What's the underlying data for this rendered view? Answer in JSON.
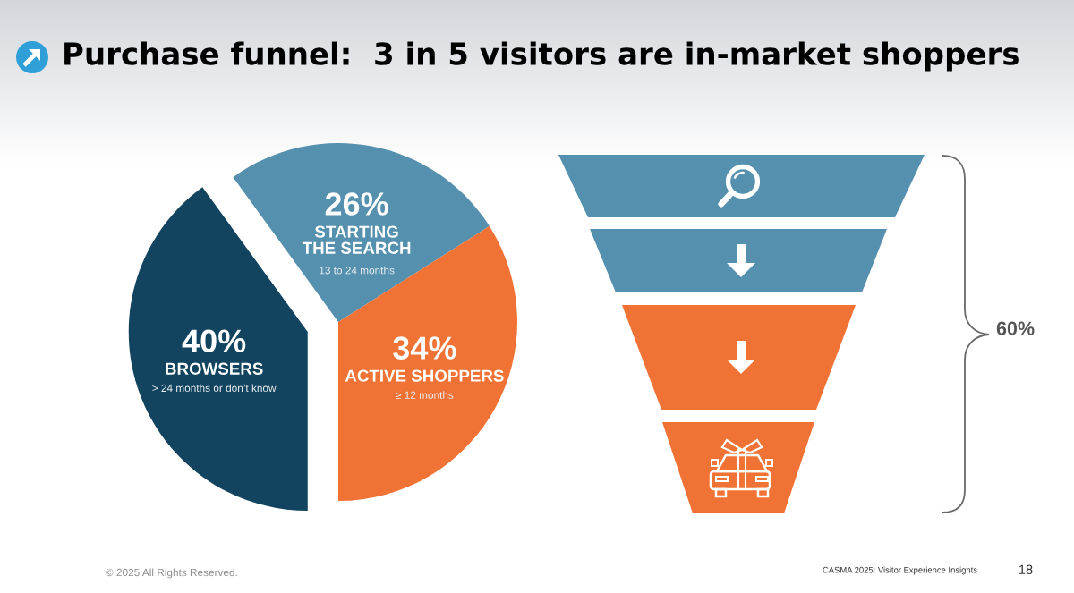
{
  "chart_data": {
    "type": "pie",
    "title": "Purchase funnel:  3 in 5 visitors are in-market shoppers",
    "categories": [
      "BROWSERS",
      "STARTING\nTHE SEARCH",
      "ACTIVE SHOPPERS"
    ],
    "values": [
      40,
      26,
      34
    ],
    "value_labels": [
      "40%",
      "26%",
      "34%"
    ],
    "colors": [
      "#12445f",
      "#5590ae",
      "#f07335"
    ],
    "annotations": [
      "> 24 months or don’t know",
      "13 to 24 months",
      "≥ 12 months",
      "60%",
      "© 2025 All Rights Reserved.",
      "CASMA 2025: Visitor Experience Insights",
      "18"
    ]
  }
}
